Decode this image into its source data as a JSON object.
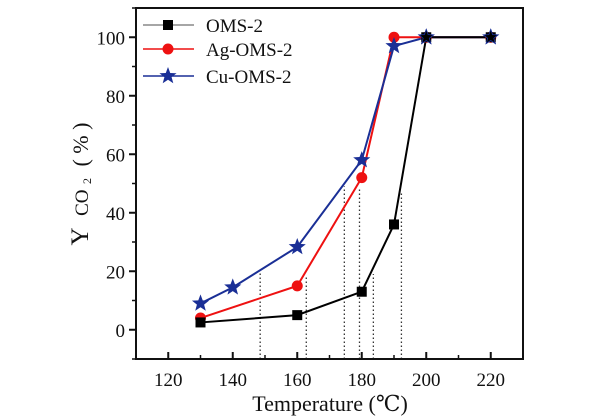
{
  "chart_data": {
    "type": "line",
    "title": "",
    "xlabel": "Temperature (℃)",
    "ylabel_main": "Y",
    "ylabel_sub": "CO",
    "ylabel_subscript": "2",
    "ylabel_unit": "( % )",
    "xlim": [
      110,
      230
    ],
    "ylim": [
      -10,
      110
    ],
    "xticks": [
      120,
      140,
      160,
      180,
      200,
      220
    ],
    "xticks_minor": [
      110,
      130,
      150,
      170,
      190,
      210,
      230
    ],
    "yticks": [
      0,
      20,
      40,
      60,
      80,
      100
    ],
    "yticks_minor": [
      -10,
      10,
      30,
      50,
      70,
      90,
      110
    ],
    "grid": false,
    "legend_position": "top-left",
    "series": [
      {
        "name": "OMS-2",
        "color": "#000000",
        "marker": "square",
        "x": [
          130,
          160,
          180,
          190,
          200,
          220
        ],
        "y": [
          2.5,
          5.0,
          13.0,
          36.0,
          100,
          100
        ]
      },
      {
        "name": "Ag-OMS-2",
        "color": "#ee1111",
        "marker": "circle",
        "x": [
          130,
          160,
          180,
          190,
          200,
          220
        ],
        "y": [
          4.0,
          15.0,
          52.0,
          100,
          100,
          100
        ]
      },
      {
        "name": "Cu-OMS-2",
        "color": "#1a2f96",
        "marker": "star",
        "x": [
          130,
          140,
          160,
          180,
          190,
          200,
          220
        ],
        "y": [
          9.0,
          14.5,
          28.3,
          58.0,
          97.0,
          100,
          100
        ]
      }
    ],
    "annotations": {
      "dotted_drop_lines": [
        {
          "x": 148.5,
          "y_top": 20
        },
        {
          "x": 162.8,
          "y_top": 18.5
        },
        {
          "x": 174.6,
          "y_top": 49
        },
        {
          "x": 179.3,
          "y_top": 48
        },
        {
          "x": 183.6,
          "y_top": 19
        },
        {
          "x": 192.3,
          "y_top": 47
        }
      ],
      "legend_line_color_oms2": "#888888"
    }
  }
}
